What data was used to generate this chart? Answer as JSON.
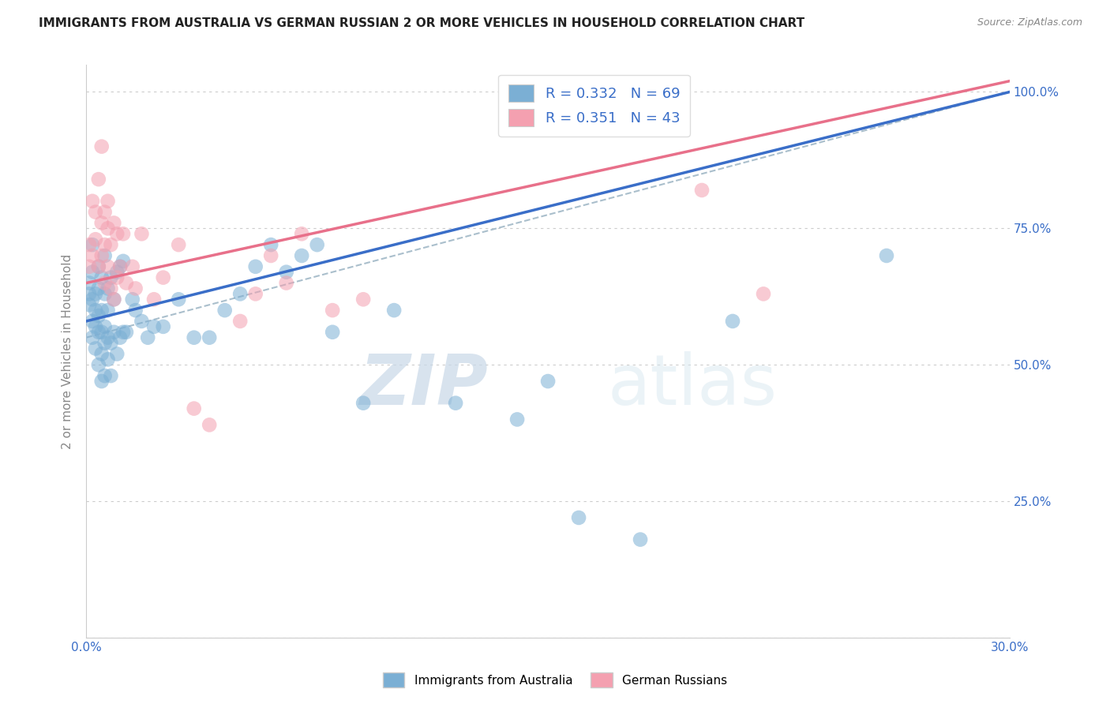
{
  "title": "IMMIGRANTS FROM AUSTRALIA VS GERMAN RUSSIAN 2 OR MORE VEHICLES IN HOUSEHOLD CORRELATION CHART",
  "source": "Source: ZipAtlas.com",
  "ylabel": "2 or more Vehicles in Household",
  "x_min": 0.0,
  "x_max": 0.3,
  "y_min": 0.0,
  "y_max": 1.05,
  "x_ticks": [
    0.0,
    0.05,
    0.1,
    0.15,
    0.2,
    0.25,
    0.3
  ],
  "x_tick_labels": [
    "0.0%",
    "",
    "",
    "",
    "",
    "",
    "30.0%"
  ],
  "y_ticks": [
    0.0,
    0.25,
    0.5,
    0.75,
    1.0
  ],
  "y_tick_labels": [
    "",
    "25.0%",
    "50.0%",
    "75.0%",
    "100.0%"
  ],
  "legend_r1": "0.332",
  "legend_n1": "69",
  "legend_r2": "0.351",
  "legend_n2": "43",
  "color_blue": "#7BAFD4",
  "color_pink": "#F4A0B0",
  "color_trend_blue": "#3A6EC8",
  "color_trend_pink": "#E8708A",
  "color_dashed": "#AABFCC",
  "color_text_blue": "#3A6EC8",
  "background": "#FFFFFF",
  "watermark_zip": "ZIP",
  "watermark_atlas": "atlas",
  "blue_x": [
    0.001,
    0.001,
    0.001,
    0.002,
    0.002,
    0.002,
    0.002,
    0.002,
    0.003,
    0.003,
    0.003,
    0.003,
    0.004,
    0.004,
    0.004,
    0.004,
    0.004,
    0.005,
    0.005,
    0.005,
    0.005,
    0.005,
    0.006,
    0.006,
    0.006,
    0.006,
    0.006,
    0.007,
    0.007,
    0.007,
    0.007,
    0.008,
    0.008,
    0.008,
    0.009,
    0.009,
    0.01,
    0.01,
    0.011,
    0.011,
    0.012,
    0.012,
    0.013,
    0.015,
    0.016,
    0.018,
    0.02,
    0.022,
    0.025,
    0.03,
    0.035,
    0.04,
    0.045,
    0.05,
    0.055,
    0.06,
    0.065,
    0.07,
    0.075,
    0.08,
    0.09,
    0.1,
    0.12,
    0.14,
    0.15,
    0.16,
    0.18,
    0.21,
    0.26
  ],
  "blue_y": [
    0.61,
    0.63,
    0.65,
    0.55,
    0.58,
    0.62,
    0.67,
    0.72,
    0.53,
    0.57,
    0.6,
    0.63,
    0.5,
    0.56,
    0.59,
    0.64,
    0.68,
    0.47,
    0.52,
    0.56,
    0.6,
    0.66,
    0.48,
    0.54,
    0.57,
    0.63,
    0.7,
    0.51,
    0.55,
    0.6,
    0.64,
    0.48,
    0.54,
    0.66,
    0.56,
    0.62,
    0.52,
    0.67,
    0.55,
    0.68,
    0.56,
    0.69,
    0.56,
    0.62,
    0.6,
    0.58,
    0.55,
    0.57,
    0.57,
    0.62,
    0.55,
    0.55,
    0.6,
    0.63,
    0.68,
    0.72,
    0.67,
    0.7,
    0.72,
    0.56,
    0.43,
    0.6,
    0.43,
    0.4,
    0.47,
    0.22,
    0.18,
    0.58,
    0.7
  ],
  "pink_x": [
    0.001,
    0.001,
    0.002,
    0.002,
    0.003,
    0.003,
    0.004,
    0.004,
    0.005,
    0.005,
    0.005,
    0.006,
    0.006,
    0.006,
    0.007,
    0.007,
    0.007,
    0.008,
    0.008,
    0.009,
    0.009,
    0.01,
    0.01,
    0.011,
    0.012,
    0.013,
    0.015,
    0.016,
    0.018,
    0.022,
    0.025,
    0.03,
    0.035,
    0.04,
    0.05,
    0.055,
    0.06,
    0.065,
    0.07,
    0.08,
    0.09,
    0.2,
    0.22
  ],
  "pink_y": [
    0.68,
    0.72,
    0.7,
    0.8,
    0.73,
    0.78,
    0.68,
    0.84,
    0.7,
    0.76,
    0.9,
    0.65,
    0.72,
    0.78,
    0.68,
    0.75,
    0.8,
    0.64,
    0.72,
    0.62,
    0.76,
    0.66,
    0.74,
    0.68,
    0.74,
    0.65,
    0.68,
    0.64,
    0.74,
    0.62,
    0.66,
    0.72,
    0.42,
    0.39,
    0.58,
    0.63,
    0.7,
    0.65,
    0.74,
    0.6,
    0.62,
    0.82,
    0.63
  ]
}
